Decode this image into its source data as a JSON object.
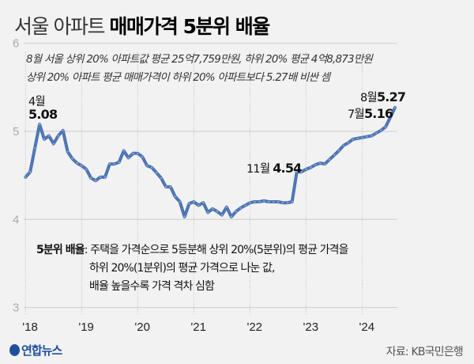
{
  "title": {
    "light": "서울 아파트",
    "bold": "매매가격 5분위 배율"
  },
  "subtitle": [
    "8월 서울 상위 20% 아파트값 평균 25억7,759만원, 하위 20% 평균 4억8,873만원",
    "상위 20% 아파트 평균 매매가격이 하위 20% 아파트보다 5.27배 비싼 셈"
  ],
  "annotations": {
    "apr18": {
      "month": "4월",
      "value": "5.08"
    },
    "nov22": {
      "month": "11월",
      "value": "4.54"
    },
    "jul24": {
      "month": "7월",
      "value": "5.16"
    },
    "aug24": {
      "month": "8월",
      "value": "5.27"
    }
  },
  "definition": {
    "term": "5분위 배율",
    "lines": [
      ": 주택을 가격순으로 5등분해 상위 20%(5분위)의 평균 가격을",
      "하위 20%(1분위)의 평균 가격으로 나눈 값,",
      "배율 높을수록 가격 격차 심함"
    ]
  },
  "logo": "연합뉴스",
  "source": "자료: KB국민은행",
  "colors": {
    "line": "#4a72b0",
    "background": "#f2f2f3",
    "grid": "#cccccc"
  },
  "chart_data": {
    "type": "line",
    "title": "서울 아파트 매매가격 5분위 배율",
    "x_start": "2018-01",
    "x_end": "2024-08",
    "frequency": "monthly",
    "xtick_labels": [
      "'18",
      "'19",
      "'20",
      "'21",
      "'22",
      "'23",
      "'24"
    ],
    "ytick_labels": [
      "3",
      "4",
      "5",
      "6"
    ],
    "ylim": [
      3,
      6
    ],
    "grid": "horizontal solid, vertical dotted at years",
    "values": [
      4.48,
      4.54,
      4.81,
      5.08,
      4.91,
      4.95,
      4.86,
      4.95,
      5.01,
      4.77,
      4.69,
      4.64,
      4.61,
      4.57,
      4.47,
      4.44,
      4.48,
      4.48,
      4.63,
      4.63,
      4.65,
      4.78,
      4.7,
      4.75,
      4.75,
      4.71,
      4.61,
      4.59,
      4.53,
      4.47,
      4.37,
      4.37,
      4.26,
      4.2,
      4.03,
      4.18,
      4.2,
      4.16,
      4.19,
      4.08,
      4.12,
      4.09,
      4.05,
      4.14,
      4.03,
      4.09,
      4.13,
      4.16,
      4.19,
      4.2,
      4.2,
      4.21,
      4.2,
      4.2,
      4.2,
      4.19,
      4.19,
      4.2,
      4.54,
      4.54,
      4.57,
      4.59,
      4.62,
      4.64,
      4.63,
      4.68,
      4.73,
      4.78,
      4.84,
      4.87,
      4.91,
      4.92,
      4.93,
      4.94,
      4.95,
      4.98,
      5.01,
      5.05,
      5.16,
      5.27
    ]
  }
}
